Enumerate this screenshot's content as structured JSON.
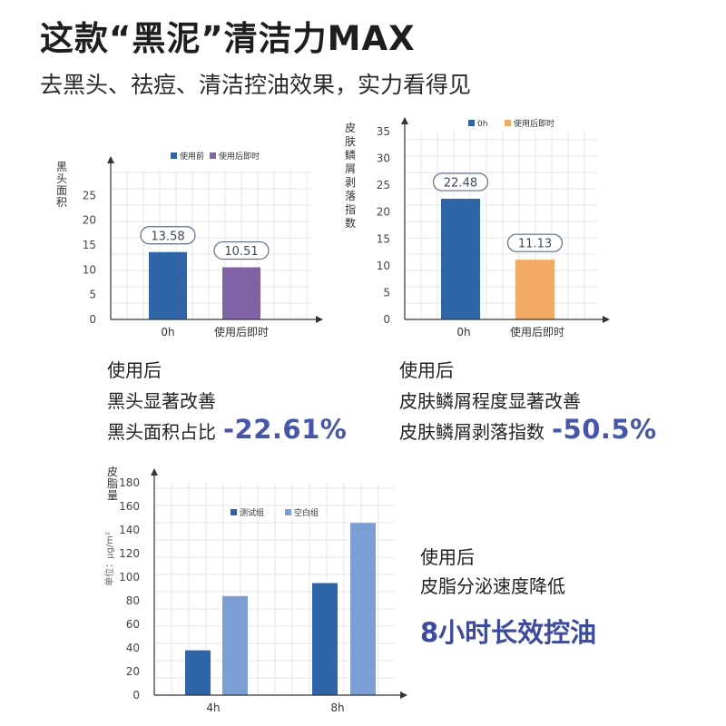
{
  "header": {
    "title": "这款“黑泥”清洁力MAX",
    "subtitle": "去黑头、祛痘、清洁控油效果，实力看得见"
  },
  "colors": {
    "blue": "#2e64a8",
    "purple": "#8062a6",
    "orange": "#f3aa64",
    "light_blue": "#7b9fd4",
    "accent_text": "#4556b0",
    "grid": "#e4e4e4"
  },
  "chart_data": [
    {
      "type": "bar",
      "ylabel": "黑头面积",
      "categories": [
        "0h",
        "使用后即时"
      ],
      "values": [
        13.58,
        10.51
      ],
      "value_labels": [
        "13.58",
        "10.51"
      ],
      "legend": [
        "使用前",
        "使用后即时"
      ],
      "bar_colors": [
        "#2e64a8",
        "#8062a6"
      ],
      "yticks": [
        0,
        5,
        10,
        15,
        20,
        25
      ],
      "ylim": [
        0,
        30
      ],
      "grid": true,
      "legend_position": "top"
    },
    {
      "type": "bar",
      "ylabel": "皮肤鳞屑剥落指数",
      "categories": [
        "0h",
        "使用后即时"
      ],
      "values": [
        22.48,
        11.13
      ],
      "value_labels": [
        "22.48",
        "11.13"
      ],
      "legend": [
        "0h",
        "使用后即时"
      ],
      "bar_colors": [
        "#2e64a8",
        "#f3aa64"
      ],
      "yticks": [
        0,
        5,
        10,
        15,
        20,
        25,
        30,
        35
      ],
      "ylim": [
        0,
        35
      ],
      "grid": true,
      "legend_position": "top"
    },
    {
      "type": "bar",
      "ylabel": "皮脂量",
      "yunit": "单位：μg/m²",
      "categories": [
        "4h",
        "8h"
      ],
      "series": [
        {
          "name": "测试组",
          "values": [
            38,
            95
          ]
        },
        {
          "name": "空白组",
          "values": [
            84,
            146
          ]
        }
      ],
      "series_colors": [
        "#2e64a8",
        "#7b9fd4"
      ],
      "yticks": [
        0,
        20,
        40,
        60,
        80,
        100,
        120,
        140,
        160,
        180
      ],
      "ylim": [
        0,
        180
      ],
      "grid": true,
      "legend_position": "top"
    }
  ],
  "captions": {
    "c1": {
      "line1": "使用后",
      "line2": "黑头显著改善",
      "line3": "黑头面积占比",
      "value": "-22.61%"
    },
    "c2": {
      "line1": "使用后",
      "line2": "皮肤鳞屑程度显著改善",
      "line3": "皮肤鳞屑剥落指数",
      "value": "-50.5%"
    },
    "c3": {
      "line1": "使用后",
      "line2": "皮脂分泌速度降低",
      "value": "8小时长效控油"
    }
  }
}
